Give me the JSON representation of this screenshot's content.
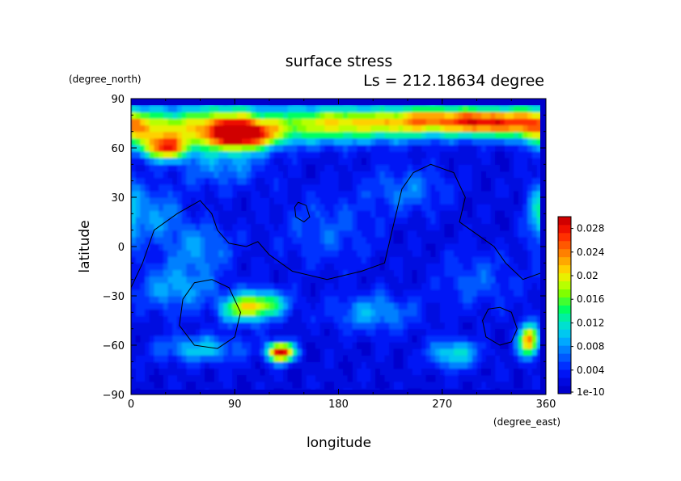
{
  "chart_data": {
    "type": "heatmap",
    "title": "surface stress",
    "subtitle": "Ls = 212.18634 degree",
    "xlabel": "longitude",
    "ylabel": "latitude",
    "x_unit": "(degree_east)",
    "y_unit": "(degree_north)",
    "xlim": [
      0,
      360
    ],
    "ylim": [
      -90,
      90
    ],
    "x_ticks": [
      "0",
      "90",
      "180",
      "270",
      "360"
    ],
    "y_ticks": [
      "90",
      "60",
      "30",
      "0",
      "−30",
      "−60",
      "−90"
    ],
    "grid": false,
    "colorbar": {
      "location": "right",
      "labels": [
        "0.028",
        "0.024",
        "0.02",
        "0.016",
        "0.012",
        "0.008",
        "0.004",
        "1e-10"
      ],
      "range": [
        0,
        0.03
      ],
      "colors": [
        "#0000cc",
        "#0008e0",
        "#0014f5",
        "#0030ff",
        "#0058ff",
        "#0080ff",
        "#00a8ff",
        "#00c8f0",
        "#00e0d0",
        "#00f0a0",
        "#00ff60",
        "#40ff30",
        "#80ff00",
        "#b8ff00",
        "#e8f000",
        "#ffd000",
        "#ffa800",
        "#ff8000",
        "#ff5800",
        "#ff3000",
        "#ee1000",
        "#d00000"
      ]
    },
    "field": {
      "background": 0.002,
      "blobs": [
        {
          "lon": 20,
          "lat": 72,
          "value": 0.014,
          "sx": 22,
          "sy": 8
        },
        {
          "lon": 30,
          "lat": 60,
          "value": 0.02,
          "sx": 14,
          "sy": 5
        },
        {
          "lon": 80,
          "lat": 75,
          "value": 0.016,
          "sx": 30,
          "sy": 9
        },
        {
          "lon": 95,
          "lat": 68,
          "value": 0.024,
          "sx": 22,
          "sy": 6
        },
        {
          "lon": 160,
          "lat": 75,
          "value": 0.012,
          "sx": 30,
          "sy": 8
        },
        {
          "lon": 220,
          "lat": 75,
          "value": 0.015,
          "sx": 40,
          "sy": 7
        },
        {
          "lon": 260,
          "lat": 78,
          "value": 0.011,
          "sx": 25,
          "sy": 6
        },
        {
          "lon": 310,
          "lat": 76,
          "value": 0.024,
          "sx": 25,
          "sy": 6
        },
        {
          "lon": 350,
          "lat": 75,
          "value": 0.013,
          "sx": 15,
          "sy": 8
        },
        {
          "lon": 80,
          "lat": 50,
          "value": 0.006,
          "sx": 25,
          "sy": 10
        },
        {
          "lon": 240,
          "lat": 35,
          "value": 0.005,
          "sx": 25,
          "sy": 10
        },
        {
          "lon": 20,
          "lat": 20,
          "value": 0.006,
          "sx": 18,
          "sy": 12
        },
        {
          "lon": 60,
          "lat": 0,
          "value": 0.006,
          "sx": 20,
          "sy": 10
        },
        {
          "lon": 115,
          "lat": -35,
          "value": 0.014,
          "sx": 15,
          "sy": 6
        },
        {
          "lon": 95,
          "lat": -38,
          "value": 0.012,
          "sx": 12,
          "sy": 6
        },
        {
          "lon": 40,
          "lat": -25,
          "value": 0.007,
          "sx": 25,
          "sy": 10
        },
        {
          "lon": 130,
          "lat": -64,
          "value": 0.029,
          "sx": 8,
          "sy": 4
        },
        {
          "lon": 60,
          "lat": -62,
          "value": 0.008,
          "sx": 25,
          "sy": 6
        },
        {
          "lon": 210,
          "lat": -40,
          "value": 0.007,
          "sx": 25,
          "sy": 8
        },
        {
          "lon": 280,
          "lat": -65,
          "value": 0.01,
          "sx": 15,
          "sy": 6
        },
        {
          "lon": 345,
          "lat": -57,
          "value": 0.022,
          "sx": 6,
          "sy": 7
        },
        {
          "lon": 355,
          "lat": 20,
          "value": 0.008,
          "sx": 8,
          "sy": 15
        },
        {
          "lon": 170,
          "lat": 10,
          "value": 0.004,
          "sx": 30,
          "sy": 15
        },
        {
          "lon": 300,
          "lat": -20,
          "value": 0.004,
          "sx": 25,
          "sy": 12
        }
      ]
    },
    "contours": [
      {
        "name": "coastline",
        "points": [
          [
            0,
            -25
          ],
          [
            10,
            -10
          ],
          [
            20,
            10
          ],
          [
            40,
            20
          ],
          [
            60,
            28
          ],
          [
            70,
            20
          ],
          [
            75,
            10
          ],
          [
            85,
            2
          ],
          [
            100,
            0
          ],
          [
            110,
            3
          ],
          [
            120,
            -5
          ],
          [
            140,
            -15
          ],
          [
            170,
            -20
          ],
          [
            200,
            -15
          ],
          [
            220,
            -10
          ],
          [
            225,
            5
          ],
          [
            230,
            20
          ],
          [
            235,
            35
          ],
          [
            245,
            45
          ],
          [
            260,
            50
          ],
          [
            280,
            45
          ],
          [
            290,
            30
          ],
          [
            285,
            15
          ],
          [
            295,
            10
          ],
          [
            315,
            0
          ],
          [
            325,
            -10
          ],
          [
            340,
            -20
          ],
          [
            360,
            -15
          ]
        ]
      },
      {
        "name": "basin-hellas",
        "points": [
          [
            70,
            -20
          ],
          [
            85,
            -25
          ],
          [
            95,
            -40
          ],
          [
            90,
            -55
          ],
          [
            75,
            -62
          ],
          [
            55,
            -60
          ],
          [
            42,
            -48
          ],
          [
            45,
            -32
          ],
          [
            55,
            -22
          ],
          [
            70,
            -20
          ]
        ]
      },
      {
        "name": "basin-argyre",
        "points": [
          [
            320,
            -37
          ],
          [
            330,
            -40
          ],
          [
            335,
            -50
          ],
          [
            330,
            -58
          ],
          [
            320,
            -60
          ],
          [
            308,
            -55
          ],
          [
            305,
            -45
          ],
          [
            310,
            -38
          ],
          [
            320,
            -37
          ]
        ]
      },
      {
        "name": "island",
        "points": [
          [
            145,
            27
          ],
          [
            152,
            25
          ],
          [
            155,
            18
          ],
          [
            150,
            15
          ],
          [
            143,
            18
          ],
          [
            142,
            24
          ],
          [
            145,
            27
          ]
        ]
      }
    ]
  }
}
